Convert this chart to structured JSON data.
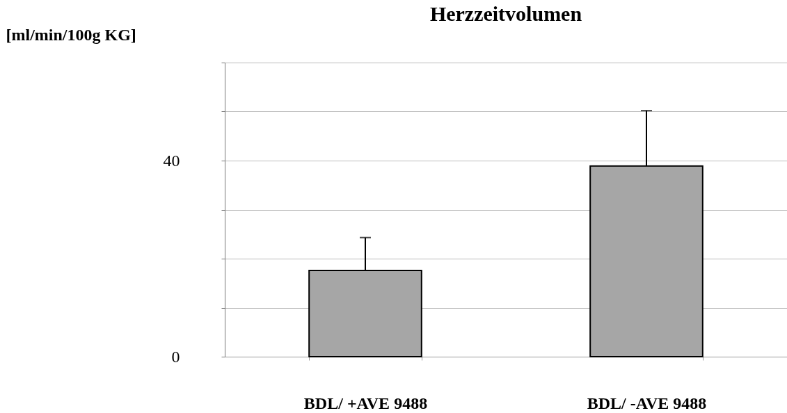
{
  "chart_data": {
    "type": "bar",
    "title": "Herzzeitvolumen",
    "ylabel": "[ml/min/100g KG]",
    "categories": [
      "BDL/ +AVE 9488",
      "BDL/ -AVE 9488"
    ],
    "values": [
      17.6,
      38.9
    ],
    "color": "#a6a6a6",
    "errors": [
      [
        17.6,
        24.3
      ],
      [
        38.9,
        50.2
      ]
    ],
    "ylim": [
      0,
      60
    ],
    "yticks": [
      0,
      {
        "value": 10,
        "label": null
      },
      {
        "value": 20,
        "label": null
      },
      {
        "value": 30,
        "label": null
      },
      40,
      {
        "value": 50,
        "label": null
      },
      {
        "value": 60,
        "label": null
      }
    ],
    "grid": "y"
  }
}
